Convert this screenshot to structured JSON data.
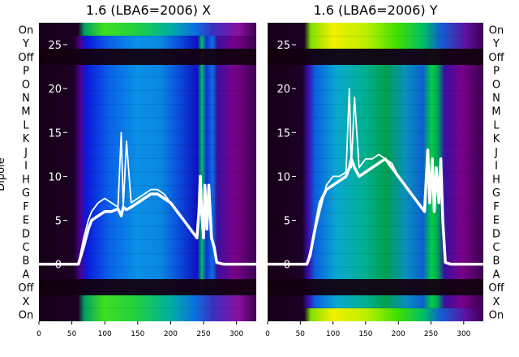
{
  "chart_data": [
    {
      "type": "heatmap",
      "title": "1.6 (LBA6=2006) X",
      "xlabel": "",
      "ylabel": "Dipole",
      "xlim": [
        0,
        330
      ],
      "x_ticks": [
        0,
        50,
        100,
        150,
        200,
        250,
        300
      ],
      "ylim": [
        -6.5,
        27.5
      ],
      "y_ticks": [
        0,
        5,
        10,
        15,
        20,
        25
      ],
      "row_labels_top_to_bottom": [
        "On",
        "Y",
        "Off",
        "P",
        "O",
        "N",
        "M",
        "L",
        "K",
        "J",
        "I",
        "H",
        "G",
        "F",
        "E",
        "D",
        "C",
        "B",
        "A",
        "Off",
        "X",
        "On"
      ],
      "overlay_lines": [
        {
          "x": [
            0,
            60,
            68,
            75,
            80,
            90,
            100,
            110,
            120,
            125,
            128,
            133,
            140,
            150,
            160,
            170,
            180,
            190,
            200,
            210,
            220,
            230,
            240,
            243,
            245,
            247,
            250,
            252,
            255,
            258,
            262,
            266,
            270,
            280,
            330
          ],
          "y": [
            0,
            0,
            2,
            4,
            5,
            5.5,
            6,
            6,
            6.3,
            5.5,
            6.5,
            6.2,
            6.5,
            7,
            7.5,
            8,
            8,
            7.5,
            7,
            6,
            5,
            4,
            3,
            6,
            10,
            6,
            3,
            9,
            4,
            9,
            3,
            2,
            0.2,
            0,
            0
          ]
        },
        {
          "x": [
            0,
            60,
            68,
            75,
            80,
            90,
            100,
            110,
            120,
            125,
            128,
            133,
            140,
            150,
            160,
            170,
            180,
            190,
            200,
            210,
            220,
            230,
            240
          ],
          "y": [
            0,
            0,
            3,
            5,
            6,
            7,
            7.5,
            7,
            6.5,
            15,
            6.5,
            14,
            7,
            7.5,
            8,
            8.5,
            8.5,
            8,
            7,
            6,
            5,
            4,
            3
          ]
        }
      ]
    },
    {
      "type": "heatmap",
      "title": "1.6 (LBA6=2006) Y",
      "xlabel": "",
      "ylabel": "",
      "xlim": [
        0,
        330
      ],
      "x_ticks": [
        0,
        50,
        100,
        150,
        200,
        250,
        300
      ],
      "ylim": [
        -6.5,
        27.5
      ],
      "y_ticks": [
        0,
        5,
        10,
        15,
        20,
        25
      ],
      "row_labels_top_to_bottom": [
        "On",
        "Y",
        "Off",
        "P",
        "O",
        "N",
        "M",
        "L",
        "K",
        "J",
        "I",
        "H",
        "G",
        "F",
        "E",
        "D",
        "C",
        "B",
        "A",
        "Off",
        "X",
        "On"
      ],
      "overlay_lines": [
        {
          "x": [
            0,
            60,
            65,
            70,
            75,
            80,
            90,
            100,
            110,
            120,
            125,
            128,
            133,
            140,
            150,
            160,
            170,
            180,
            190,
            200,
            210,
            220,
            230,
            240,
            245,
            248,
            252,
            255,
            258,
            262,
            265,
            268,
            272,
            280,
            330
          ],
          "y": [
            0,
            0,
            1,
            3,
            5,
            7,
            8.5,
            9,
            9.5,
            10,
            11,
            12,
            11,
            10,
            10.5,
            11,
            11.5,
            12,
            11,
            10,
            9,
            8,
            7,
            6,
            13,
            7,
            12,
            6,
            11,
            7,
            12,
            5,
            0.2,
            0,
            0
          ]
        },
        {
          "x": [
            0,
            60,
            70,
            80,
            90,
            100,
            110,
            120,
            125,
            128,
            133,
            140,
            150,
            160,
            170,
            180,
            190,
            200,
            210,
            220,
            230,
            240
          ],
          "y": [
            0,
            0,
            3,
            6,
            9,
            10,
            10,
            10.5,
            20,
            11,
            19,
            11,
            12,
            12,
            12.5,
            12,
            11.5,
            10,
            9,
            8,
            7,
            6
          ]
        }
      ]
    }
  ]
}
